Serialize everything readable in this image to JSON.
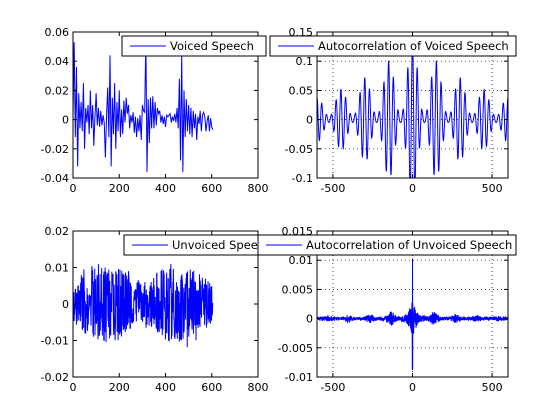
{
  "figure": {
    "background": "#ffffff",
    "line_color": "#0000ff"
  },
  "chart_data": [
    {
      "type": "line",
      "title": "",
      "xlabel": "",
      "ylabel": "",
      "xlim": [
        0,
        800
      ],
      "ylim": [
        -0.04,
        0.06
      ],
      "xticks": [
        "0",
        "200",
        "400",
        "600",
        "800"
      ],
      "yticks": [
        "-0.04",
        "-0.02",
        "0",
        "0.02",
        "0.04",
        "0.06"
      ],
      "grid": false,
      "legend_position": "top-right",
      "series": [
        {
          "name": "Voiced Speech",
          "color": "#0000ff",
          "x": [
            0,
            5,
            10,
            15,
            20,
            25,
            30,
            35,
            40,
            45,
            50,
            55,
            60,
            65,
            70,
            75,
            80,
            85,
            90,
            95,
            100,
            105,
            110,
            115,
            120,
            125,
            130,
            135,
            140,
            145,
            150,
            155,
            160,
            165,
            170,
            175,
            180,
            185,
            190,
            195,
            200,
            205,
            210,
            215,
            220,
            225,
            230,
            235,
            240,
            245,
            250,
            255,
            260,
            265,
            270,
            275,
            280,
            285,
            290,
            295,
            300,
            305,
            310,
            315,
            320,
            325,
            330,
            335,
            340,
            345,
            350,
            355,
            360,
            365,
            370,
            375,
            380,
            385,
            390,
            395,
            400,
            405,
            410,
            415,
            420,
            425,
            430,
            435,
            440,
            445,
            450,
            455,
            460,
            465,
            470,
            475,
            480,
            485,
            490,
            495,
            500,
            505,
            510,
            515,
            520,
            525,
            530,
            535,
            540,
            545,
            550,
            555,
            560,
            565,
            570,
            575,
            580,
            585,
            590,
            595,
            600,
            605
          ],
          "y": [
            0.002,
            0.053,
            -0.012,
            0.036,
            -0.032,
            0.018,
            -0.006,
            0.012,
            -0.008,
            0.025,
            -0.02,
            0.008,
            -0.002,
            0.01,
            -0.01,
            0.02,
            -0.006,
            0.01,
            -0.018,
            0.002,
            0.018,
            -0.004,
            0.008,
            -0.005,
            0.006,
            -0.004,
            0.003,
            -0.002,
            -0.026,
            0.002,
            0.022,
            -0.012,
            0.044,
            -0.032,
            0.015,
            -0.01,
            0.025,
            -0.02,
            0.012,
            -0.008,
            0.02,
            -0.012,
            0.007,
            -0.01,
            0.013,
            -0.002,
            0.015,
            0.004,
            0.01,
            -0.006,
            0.003,
            -0.002,
            0.005,
            -0.009,
            0.002,
            -0.012,
            0.001,
            -0.008,
            0.003,
            -0.014,
            0.01,
            0.006,
            0.005,
            0.055,
            -0.036,
            0.014,
            -0.016,
            0.015,
            -0.006,
            0.016,
            -0.006,
            0.012,
            -0.004,
            0.008,
            0.004,
            0.006,
            -0.002,
            0.003,
            -0.003,
            0.002,
            -0.005,
            0.003,
            0.002,
            0.003,
            0.004,
            -0.002,
            0.002,
            -0.001,
            0.004,
            -0.002,
            0.008,
            -0.006,
            0.028,
            -0.028,
            0.045,
            -0.036,
            0.02,
            -0.012,
            0.014,
            -0.008,
            0.01,
            -0.01,
            0.008,
            -0.012,
            0.006,
            -0.006,
            0.004,
            -0.014,
            0.002,
            -0.003,
            0.006,
            -0.008,
            0.003,
            0.005,
            0.002,
            -0.008,
            -0.001,
            0.003,
            -0.008,
            0.001,
            -0.005,
            -0.007
          ]
        }
      ]
    },
    {
      "type": "line",
      "title": "",
      "xlabel": "",
      "ylabel": "",
      "xlim": [
        -600,
        600
      ],
      "ylim": [
        -0.1,
        0.15
      ],
      "xticks": [
        "-500",
        "0",
        "500"
      ],
      "yticks": [
        "-0.1",
        "-0.05",
        "0",
        "0.05",
        "0.1",
        "0.15"
      ],
      "grid": true,
      "legend_position": "top-right",
      "series": [
        {
          "name": "Autocorrelation of Voiced Speech",
          "color": "#0000ff",
          "generator": {
            "kind": "autocorrelation-oscillation",
            "peak": 0.142,
            "carrier_period": 30,
            "lobe_period": 150,
            "min_envelope": 0.035,
            "x_extent": 605
          }
        }
      ]
    },
    {
      "type": "line",
      "title": "",
      "xlabel": "",
      "ylabel": "",
      "xlim": [
        0,
        800
      ],
      "ylim": [
        -0.02,
        0.02
      ],
      "xticks": [
        "0",
        "200",
        "400",
        "600",
        "800"
      ],
      "yticks": [
        "-0.02",
        "-0.01",
        "0",
        "0.01",
        "0.02"
      ],
      "grid": false,
      "legend_position": "top-right",
      "series": [
        {
          "name": "Unvoiced Speech",
          "color": "#0000ff",
          "generator": {
            "kind": "noise",
            "x_extent": 605,
            "amplitude": 0.0105,
            "min_value": -0.0125,
            "max_value": 0.011
          }
        }
      ]
    },
    {
      "type": "line",
      "title": "",
      "xlabel": "",
      "ylabel": "",
      "xlim": [
        -600,
        600
      ],
      "ylim": [
        -0.01,
        0.015
      ],
      "xticks": [
        "-500",
        "0",
        "500"
      ],
      "yticks": [
        "-0.01",
        "-0.005",
        "0",
        "0.005",
        "0.01",
        "0.015"
      ],
      "grid": true,
      "legend_position": "top-right",
      "series": [
        {
          "name": "Autocorrelation of Unvoiced Speech",
          "color": "#0000ff",
          "generator": {
            "kind": "autocorrelation-noise",
            "peak": 0.0103,
            "min_at_zero": -0.0088,
            "side_lobe": 0.0015,
            "x_extent": 605
          }
        }
      ]
    }
  ]
}
